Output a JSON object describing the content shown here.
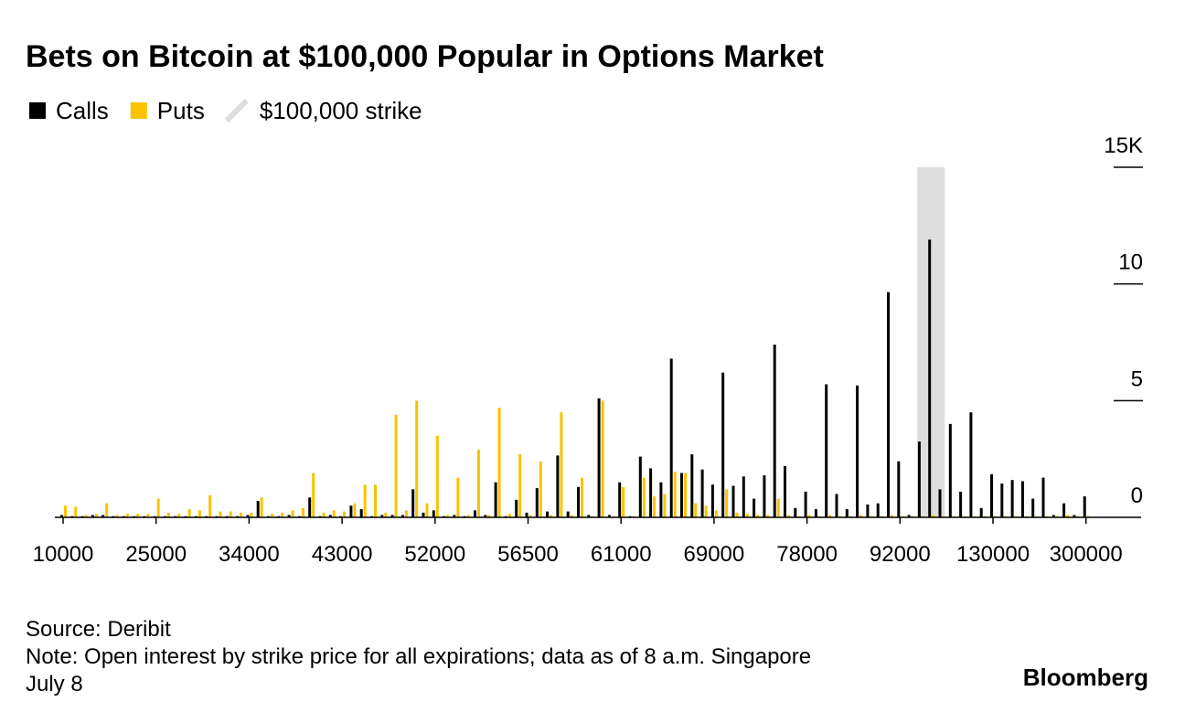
{
  "chart_data": {
    "type": "bar",
    "title": "Bets on Bitcoin at $100,000 Popular in Options Market",
    "categories": [
      "10000",
      null,
      null,
      null,
      null,
      null,
      null,
      null,
      null,
      "25000",
      null,
      null,
      null,
      null,
      null,
      null,
      null,
      null,
      "34000",
      null,
      null,
      null,
      null,
      null,
      null,
      null,
      null,
      "43000",
      null,
      null,
      null,
      null,
      null,
      null,
      null,
      null,
      "52000",
      null,
      null,
      null,
      null,
      null,
      null,
      null,
      null,
      "56500",
      null,
      null,
      null,
      null,
      null,
      null,
      null,
      null,
      "61000",
      null,
      null,
      null,
      null,
      null,
      null,
      null,
      null,
      "69000",
      null,
      null,
      null,
      null,
      null,
      null,
      null,
      null,
      "78000",
      null,
      null,
      null,
      null,
      null,
      null,
      null,
      null,
      "92000",
      null,
      null,
      null,
      null,
      null,
      null,
      null,
      null,
      "130000",
      null,
      null,
      null,
      null,
      null,
      null,
      null,
      null,
      "300000"
    ],
    "series": [
      {
        "name": "Calls",
        "color": "#000000",
        "values": [
          0.1,
          0.05,
          0.05,
          0.1,
          0.1,
          0.05,
          0.05,
          0.05,
          0.05,
          0.05,
          0.05,
          0.05,
          0.05,
          0.05,
          0.05,
          0.05,
          0.05,
          0.05,
          0.1,
          0.7,
          0.05,
          0.05,
          0.1,
          0.05,
          0.85,
          0.05,
          0.1,
          0.05,
          0.5,
          0.35,
          0.05,
          0.1,
          0.1,
          0.1,
          1.2,
          0.2,
          0.3,
          0.05,
          0.1,
          0.05,
          0.3,
          0.1,
          1.5,
          0.05,
          0.75,
          0.2,
          1.25,
          0.25,
          2.65,
          0.25,
          1.3,
          0.1,
          5.1,
          0.1,
          1.5,
          0.05,
          2.6,
          2.1,
          1.5,
          6.8,
          1.9,
          2.7,
          2.05,
          1.4,
          6.2,
          1.35,
          1.75,
          0.8,
          1.8,
          7.4,
          2.2,
          0.4,
          1.1,
          0.35,
          5.7,
          1.0,
          0.35,
          5.65,
          0.55,
          0.6,
          9.65,
          2.4,
          0.1,
          3.25,
          11.9,
          1.2,
          4.0,
          1.1,
          4.5,
          0.4,
          1.85,
          1.45,
          1.6,
          1.55,
          0.8,
          1.7,
          0.1,
          0.6,
          0.1,
          0.9
        ]
      },
      {
        "name": "Puts",
        "color": "#f9c300",
        "values": [
          0.5,
          0.45,
          0.1,
          0.15,
          0.6,
          0.1,
          0.15,
          0.15,
          0.15,
          0.8,
          0.2,
          0.15,
          0.35,
          0.3,
          0.95,
          0.25,
          0.25,
          0.2,
          0.2,
          0.85,
          0.15,
          0.2,
          0.3,
          0.4,
          1.9,
          0.2,
          0.3,
          0.25,
          0.6,
          1.4,
          1.4,
          0.2,
          4.4,
          0.3,
          5.0,
          0.6,
          3.5,
          0.1,
          1.7,
          0.1,
          2.9,
          0.1,
          4.7,
          0.15,
          2.7,
          0.1,
          2.4,
          0.1,
          4.5,
          0.1,
          1.7,
          0.05,
          5.0,
          0.05,
          1.3,
          0.05,
          1.7,
          0.9,
          1.0,
          1.95,
          1.9,
          0.6,
          0.5,
          0.3,
          1.2,
          0.2,
          0.15,
          0.1,
          0.1,
          0.8,
          0.1,
          0.05,
          0.1,
          0.05,
          0.1,
          0.05,
          0.05,
          0.1,
          0.05,
          0.05,
          0.1,
          0.05,
          0.05,
          0.05,
          0.1,
          0.05,
          0.05,
          0.05,
          0.05,
          0.05,
          0.05,
          0.05,
          0.05,
          0.05,
          0.05,
          0.05,
          0.05,
          0.1,
          0.05,
          0.05
        ]
      }
    ],
    "highlight": {
      "name": "$100,000 strike",
      "color": "#dddddd",
      "category_index": 84
    },
    "ylim": [
      0,
      15
    ],
    "yticks": [
      0,
      5,
      10,
      {
        "value": 15,
        "label": "15K"
      }
    ],
    "source": "Source: Deribit",
    "note": "Note: Open interest by strike price for all expirations; data as of 8 a.m. Singapore",
    "date": "July 8",
    "brand": "Bloomberg"
  }
}
